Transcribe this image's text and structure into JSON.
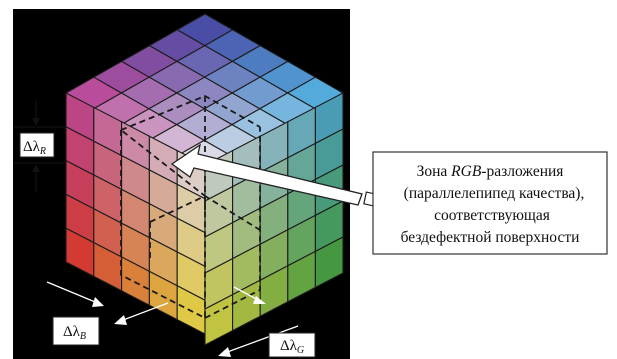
{
  "figure": {
    "labels": {
      "delta_r": {
        "base": "Δλ",
        "sub": "R"
      },
      "delta_b": {
        "base": "Δλ",
        "sub": "B"
      },
      "delta_g": {
        "base": "Δλ",
        "sub": "G"
      }
    },
    "callout": {
      "line1_prefix": "Зона ",
      "line1_italic": "RGB",
      "line1_suffix": "-разложения",
      "line2": "(параллелепипед качества),",
      "line3": "соответствующая",
      "line4": "бездефектной поверхности"
    },
    "cube": {
      "grid_size": 5,
      "background": "#000000",
      "corner_colors": {
        "top": "#3a42a0",
        "left_top": "#c23a90",
        "right_top": "#44b0e0",
        "center": "#f1f1f1",
        "left_bottom": "#e52a28",
        "right_bottom": "#3da93b",
        "bottom": "#f2ea3a"
      }
    }
  }
}
